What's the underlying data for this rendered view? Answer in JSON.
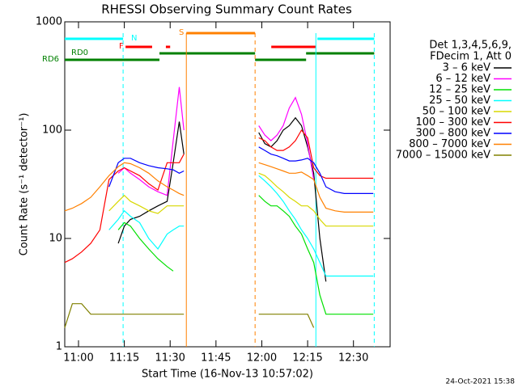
{
  "chart_data": {
    "type": "line",
    "title": "RHESSI Observing Summary Count Rates",
    "x_label": "Start Time (16-Nov-13 10:57:02)",
    "y_label": "Count Rate (s⁻¹ detector⁻¹)",
    "footer": "24-Oct-2021 15:38",
    "legend_header": [
      "Det 1,3,4,5,6,9,",
      "FDecim 1, Att 0"
    ],
    "y_scale": "log",
    "xlim": [
      655.5,
      762
    ],
    "ylim": [
      1,
      1000
    ],
    "yticks": [
      1,
      10,
      100,
      1000
    ],
    "xticks": [
      {
        "value": 660,
        "label": "11:00"
      },
      {
        "value": 675,
        "label": "11:15"
      },
      {
        "value": 690,
        "label": "11:30"
      },
      {
        "value": 705,
        "label": "11:45"
      },
      {
        "value": 720,
        "label": "12:00"
      },
      {
        "value": 735,
        "label": "12:15"
      },
      {
        "value": 750,
        "label": "12:30"
      }
    ],
    "x": [
      655.5,
      658,
      661,
      664,
      667,
      670,
      673,
      675,
      677,
      680,
      683,
      686,
      689,
      691,
      693,
      694.5,
      706,
      719,
      721,
      723,
      725,
      727,
      729,
      731,
      733,
      735,
      737,
      739,
      741,
      744,
      747,
      750,
      753,
      756.5
    ],
    "series": [
      {
        "name": "3 – 6 keV",
        "color": "#000000",
        "values": [
          null,
          null,
          null,
          null,
          null,
          null,
          9,
          13,
          15,
          16,
          18,
          20,
          22,
          50,
          120,
          60,
          null,
          95,
          75,
          70,
          80,
          100,
          110,
          130,
          110,
          70,
          40,
          10,
          4,
          null,
          null,
          null,
          null,
          null
        ]
      },
      {
        "name": "6 – 12 keV",
        "color": "#ff00ff",
        "values": [
          null,
          null,
          null,
          null,
          null,
          null,
          40,
          45,
          40,
          35,
          30,
          27,
          25,
          80,
          250,
          100,
          null,
          110,
          90,
          80,
          90,
          110,
          160,
          200,
          140,
          75,
          35,
          null,
          null,
          null,
          null,
          null,
          null,
          null
        ]
      },
      {
        "name": "12 – 25 keV",
        "color": "#00e000",
        "values": [
          null,
          null,
          null,
          null,
          null,
          null,
          12,
          14,
          13,
          10,
          8,
          6.5,
          5.5,
          5,
          null,
          null,
          null,
          25,
          22,
          20,
          20,
          18,
          16,
          13,
          11,
          8,
          6,
          3,
          2,
          2,
          2,
          2,
          2,
          2
        ]
      },
      {
        "name": "25 – 50 keV",
        "color": "#00ffff",
        "values": [
          null,
          null,
          null,
          null,
          null,
          12,
          15,
          18,
          16,
          14,
          10,
          8,
          11,
          12,
          13,
          13,
          null,
          38,
          34,
          30,
          26,
          22,
          18,
          15,
          12,
          10,
          8,
          6,
          4.5,
          4.5,
          4.5,
          4.5,
          4.5,
          4.5
        ]
      },
      {
        "name": "50 – 100 keV",
        "color": "#d8d800",
        "values": [
          null,
          null,
          null,
          null,
          null,
          18,
          22,
          25,
          22,
          20,
          18,
          17,
          20,
          20,
          20,
          20,
          null,
          40,
          38,
          34,
          30,
          27,
          24,
          22,
          20,
          20,
          18,
          15,
          13,
          13,
          13,
          13,
          13,
          13
        ]
      },
      {
        "name": "100 – 300 keV",
        "color": "#ff0000",
        "values": [
          6,
          6.5,
          7.5,
          9,
          12,
          35,
          42,
          45,
          42,
          38,
          32,
          28,
          50,
          50,
          50,
          60,
          null,
          85,
          80,
          70,
          65,
          65,
          70,
          80,
          100,
          85,
          45,
          38,
          36,
          36,
          36,
          36,
          36,
          36
        ]
      },
      {
        "name": "300 – 800 keV",
        "color": "#0000ff",
        "values": [
          null,
          null,
          null,
          null,
          null,
          30,
          50,
          55,
          55,
          50,
          47,
          45,
          44,
          43,
          40,
          42,
          null,
          70,
          65,
          60,
          58,
          55,
          52,
          52,
          53,
          55,
          50,
          40,
          30,
          27,
          26,
          26,
          26,
          26
        ]
      },
      {
        "name": "800 – 7000 keV",
        "color": "#ff8000",
        "values": [
          18,
          19,
          21,
          24,
          30,
          38,
          46,
          50,
          49,
          45,
          40,
          34,
          30,
          28,
          26,
          25,
          null,
          50,
          48,
          46,
          44,
          42,
          40,
          40,
          41,
          38,
          35,
          24,
          19,
          18,
          17.5,
          17.5,
          17.5,
          17.5
        ]
      },
      {
        "name": "7000 – 15000 keV",
        "color": "#808000",
        "values": [
          1.5,
          2.5,
          2.5,
          2,
          2,
          2,
          2,
          2,
          2,
          2,
          2,
          2,
          2,
          2,
          2,
          2,
          null,
          2,
          2,
          2,
          2,
          2,
          2,
          2,
          2,
          2,
          1.5,
          null,
          null,
          null,
          null,
          null,
          null,
          null
        ]
      }
    ],
    "flags": [
      {
        "label": "N",
        "color": "#00ffff",
        "segments": [
          [
            655.5,
            674.6
          ],
          [
            738.2,
            756.8
          ]
        ]
      },
      {
        "label": "F",
        "color": "#ff0000",
        "segments": [
          [
            675.4,
            684.1
          ],
          [
            688.6,
            690
          ],
          [
            723.1,
            737.7
          ]
        ]
      },
      {
        "label": "S",
        "color": "#ff8000",
        "segments": [
          [
            695.3,
            717.8
          ]
        ]
      },
      {
        "label": "RD0",
        "color": "#008000",
        "segments": [
          [
            686.5,
            717.8
          ],
          [
            734.5,
            756.8
          ]
        ]
      },
      {
        "label": "RD6",
        "color": "#008000",
        "segments": [
          [
            655.5,
            686.5
          ],
          [
            717.8,
            734.5
          ]
        ]
      }
    ],
    "markers": [
      {
        "x": 674.6,
        "color": "#00ffff",
        "style": "dashed"
      },
      {
        "x": 695.3,
        "color": "#ff8000",
        "style": "solid"
      },
      {
        "x": 717.8,
        "color": "#ff8000",
        "style": "dashed"
      },
      {
        "x": 737.7,
        "color": "#00ffff",
        "style": "solid"
      },
      {
        "x": 756.8,
        "color": "#00ffff",
        "style": "dashed"
      }
    ]
  }
}
